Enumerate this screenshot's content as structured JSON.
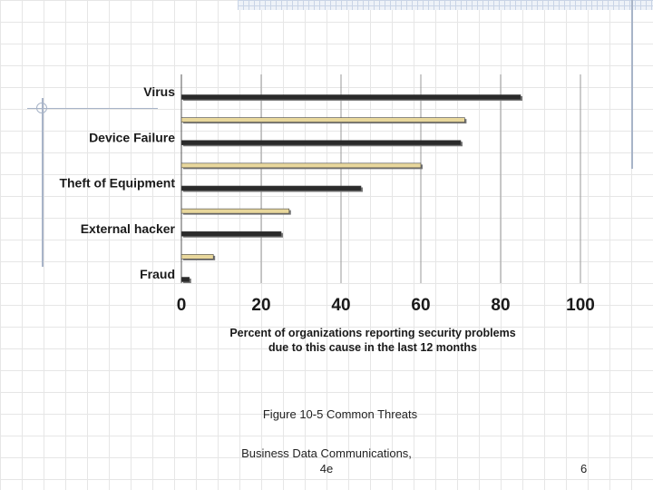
{
  "chart_data": {
    "type": "bar",
    "orientation": "horizontal",
    "categories": [
      "Virus",
      "",
      "Device Failure",
      "",
      "Theft of Equipment",
      "",
      "External hacker",
      "",
      "Fraud"
    ],
    "sub_bars": [
      {
        "color": "#2a2a2a",
        "values": [
          85,
          70,
          45,
          25,
          2
        ]
      },
      {
        "color": "#e8d79c",
        "values": [
          71,
          60,
          27,
          8
        ]
      }
    ],
    "values": [
      85,
      71,
      70,
      60,
      45,
      27,
      25,
      8,
      2
    ],
    "bar_colors": [
      "#2a2a2a",
      "#e8d79c",
      "#2a2a2a",
      "#e8d79c",
      "#2a2a2a",
      "#e8d79c",
      "#2a2a2a",
      "#e8d79c",
      "#2a2a2a"
    ],
    "x_ticks": [
      "0",
      "20",
      "40",
      "60",
      "80",
      "100"
    ],
    "xlim": [
      0,
      100
    ],
    "xlabel_lines": [
      "Percent of organizations reporting security problems",
      "due to this cause in the last 12 months"
    ],
    "grid": "vertical"
  },
  "caption": "Figure 10-5 Common Threats",
  "footer": {
    "line1": "Business Data Communications,",
    "line2": "4e",
    "page": "6"
  }
}
